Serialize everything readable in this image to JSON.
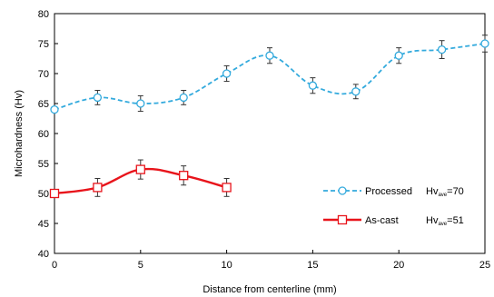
{
  "chart_data": {
    "type": "line",
    "title": "",
    "xlabel": "Distance from centerline (mm)",
    "ylabel": "Microhardness (Hv)",
    "xlim": [
      0,
      25
    ],
    "ylim": [
      40,
      80
    ],
    "xticks": [
      0,
      5,
      10,
      15,
      20,
      25
    ],
    "yticks": [
      40,
      45,
      50,
      55,
      60,
      65,
      70,
      75,
      80
    ],
    "grid": false,
    "legend_position": "right",
    "series": [
      {
        "name": "Processed",
        "color": "#33aadd",
        "line_style": "dashed",
        "marker": "circle",
        "x": [
          0,
          2.5,
          5,
          7.5,
          10,
          12.5,
          15,
          17.5,
          20,
          22.5,
          25
        ],
        "y": [
          64,
          66,
          65,
          66,
          70,
          73,
          68,
          67,
          73,
          74,
          75
        ],
        "error": [
          0,
          1.2,
          1.3,
          1.2,
          1.3,
          1.3,
          1.3,
          1.2,
          1.3,
          1.5,
          1.4
        ],
        "annotation": {
          "prefix": "Hv",
          "subscript": "ave",
          "suffix": "=70"
        }
      },
      {
        "name": "As-cast",
        "color": "#e8141b",
        "line_style": "solid",
        "marker": "square",
        "x": [
          0,
          2.5,
          5,
          7.5,
          10
        ],
        "y": [
          50,
          51,
          54,
          53,
          51
        ],
        "error": [
          0,
          1.5,
          1.6,
          1.6,
          1.5
        ],
        "annotation": {
          "prefix": "Hv",
          "subscript": "ave",
          "suffix": "=51"
        }
      }
    ]
  }
}
